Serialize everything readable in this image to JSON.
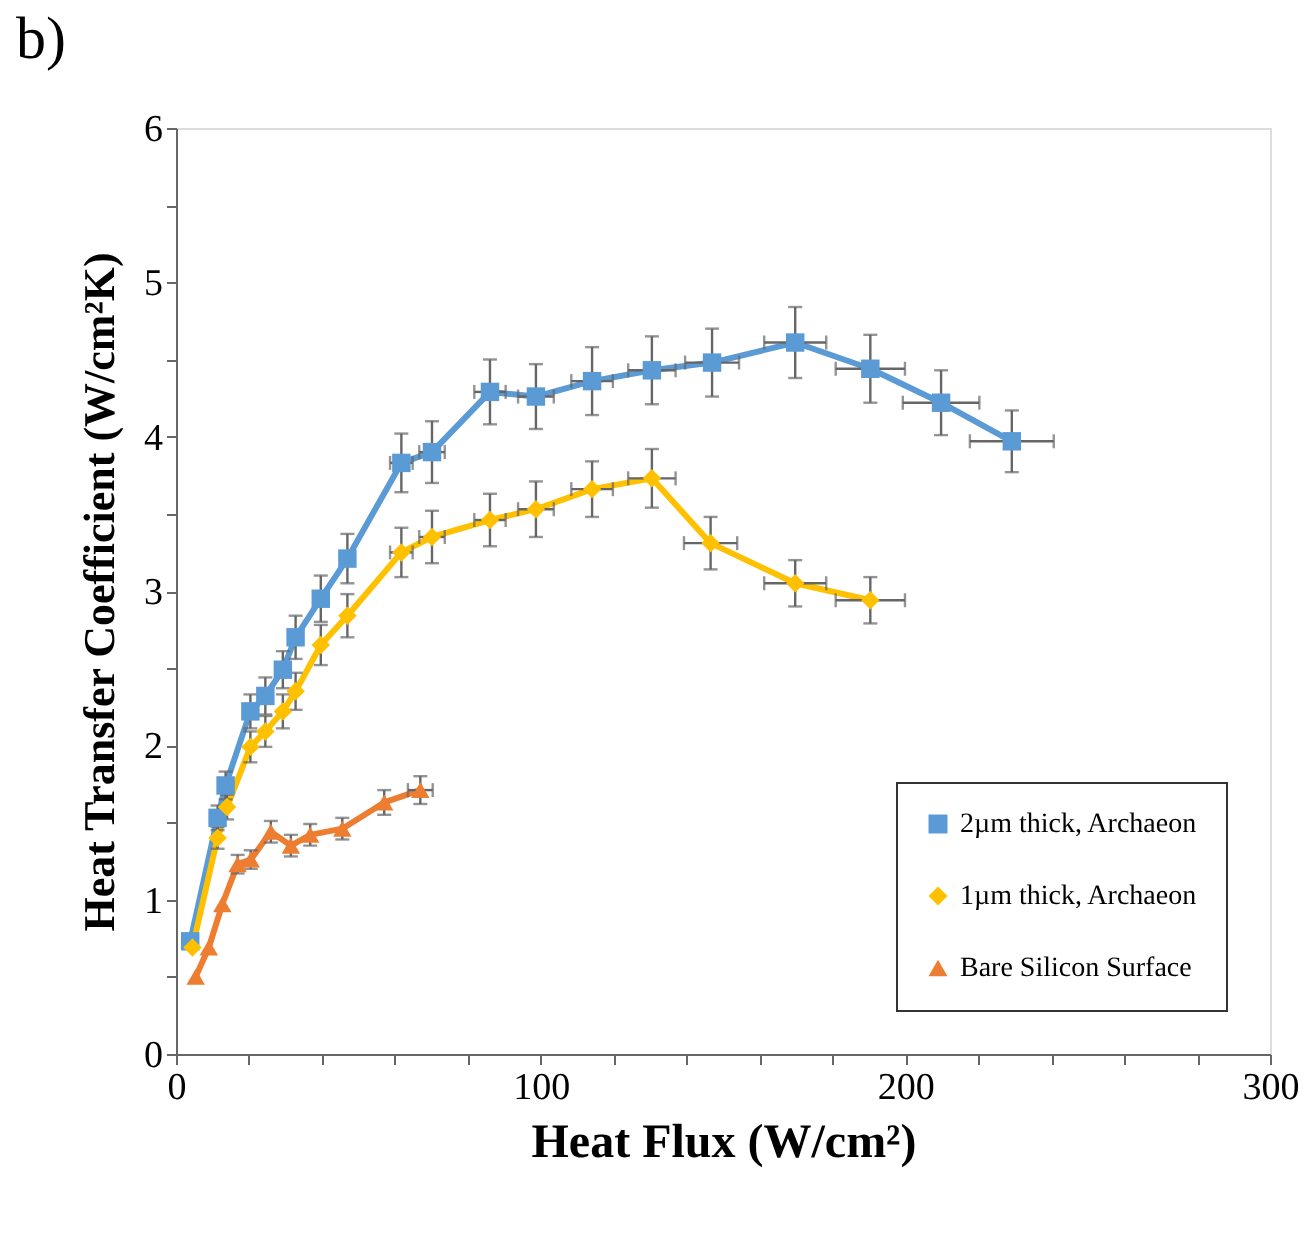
{
  "chart_data": {
    "type": "line",
    "title": "b)",
    "xlabel": "Heat Flux (W/cm²)",
    "ylabel": "Heat Transfer Coefficient (W/cm²K)",
    "xlim": [
      0,
      300
    ],
    "ylim": [
      0,
      6
    ],
    "xticks": [
      0,
      {
        "value": 20,
        "label": null
      },
      {
        "value": 40,
        "label": null
      },
      {
        "value": 60,
        "label": null
      },
      {
        "value": 80,
        "label": null
      },
      100,
      {
        "value": 120,
        "label": null
      },
      {
        "value": 140,
        "label": null
      },
      {
        "value": 160,
        "label": null
      },
      {
        "value": 180,
        "label": null
      },
      200,
      {
        "value": 220,
        "label": null
      },
      {
        "value": 240,
        "label": null
      },
      {
        "value": 260,
        "label": null
      },
      {
        "value": 280,
        "label": null
      },
      300
    ],
    "yticks": [
      0,
      {
        "value": 0.5,
        "label": null
      },
      1,
      {
        "value": 1.5,
        "label": null
      },
      2,
      {
        "value": 2.5,
        "label": null
      },
      3,
      {
        "value": 3.5,
        "label": null
      },
      4,
      {
        "value": 4.5,
        "label": null
      },
      5,
      {
        "value": 5.5,
        "label": null
      },
      6
    ],
    "grid": false,
    "legend": "bottom right",
    "line_style": "solid",
    "series": [
      {
        "name": "2µm thick, Archaeon",
        "color": "#5b9bd5",
        "marker": "square",
        "x": [
          3.9,
          11.4,
          13.6,
          20.4,
          24.5,
          29.3,
          32.8,
          39.7,
          47.0,
          61.8,
          70.2,
          86.1,
          98.7,
          114.1,
          130.5,
          147.0,
          169.8,
          190.4,
          209.8,
          229.2
        ],
        "values": [
          0.73,
          1.53,
          1.74,
          2.22,
          2.32,
          2.49,
          2.7,
          2.95,
          3.21,
          3.83,
          3.9,
          4.29,
          4.26,
          4.36,
          4.43,
          4.48,
          4.61,
          4.44,
          4.22,
          3.97
        ],
        "errors": [
          null,
          0.08,
          0.09,
          0.11,
          0.12,
          0.12,
          0.14,
          0.15,
          0.16,
          0.19,
          0.2,
          0.21,
          0.21,
          0.22,
          0.22,
          0.22,
          0.23,
          0.22,
          0.21,
          0.2
        ],
        "xerrors": [
          null,
          null,
          null,
          null,
          null,
          null,
          null,
          null,
          null,
          3.1,
          3.5,
          4.3,
          4.9,
          5.7,
          6.5,
          7.4,
          8.5,
          9.5,
          10.5,
          11.5
        ]
      },
      {
        "name": "1µm thick, Archaeon",
        "color": "#ffc000",
        "marker": "diamond",
        "x": [
          4.5,
          11.4,
          14.0,
          20.4,
          24.5,
          29.3,
          32.8,
          39.7,
          47.0,
          61.8,
          70.2,
          86.1,
          98.7,
          114.1,
          130.5,
          146.6,
          169.8,
          190.4
        ],
        "values": [
          0.69,
          1.4,
          1.6,
          1.99,
          2.09,
          2.22,
          2.35,
          2.65,
          2.84,
          3.25,
          3.35,
          3.46,
          3.53,
          3.66,
          3.73,
          3.31,
          3.05,
          2.94
        ],
        "errors": [
          null,
          0.07,
          0.08,
          0.1,
          0.1,
          0.11,
          0.12,
          0.13,
          0.14,
          0.16,
          0.17,
          0.17,
          0.18,
          0.18,
          0.19,
          0.17,
          0.15,
          0.15
        ],
        "xerrors": [
          null,
          null,
          null,
          null,
          null,
          null,
          null,
          null,
          null,
          3.1,
          3.5,
          4.3,
          4.9,
          5.7,
          6.5,
          7.3,
          8.5,
          9.5
        ]
      },
      {
        "name": "Bare Silicon Surface",
        "color": "#ed7d31",
        "marker": "triangle",
        "x": [
          5.4,
          9.0,
          12.7,
          16.9,
          20.5,
          26.0,
          31.5,
          36.8,
          45.6,
          57.1,
          67.0
        ],
        "values": [
          0.5,
          0.69,
          0.97,
          1.23,
          1.26,
          1.44,
          1.35,
          1.42,
          1.46,
          1.63,
          1.71
        ],
        "errors": [
          null,
          null,
          null,
          0.06,
          0.06,
          0.07,
          0.07,
          0.07,
          0.07,
          0.08,
          0.09
        ],
        "xerrors": [
          null,
          null,
          null,
          null,
          null,
          null,
          null,
          null,
          null,
          null,
          3.4
        ]
      }
    ]
  }
}
